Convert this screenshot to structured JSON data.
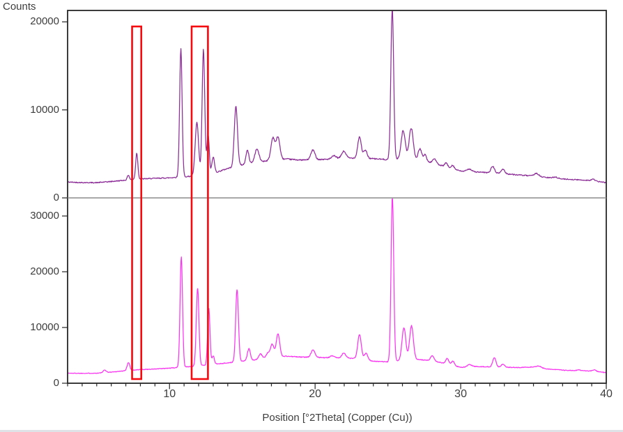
{
  "labels": {
    "counts": "Counts",
    "x_axis_title": "Position [°2Theta] (Copper (Cu))"
  },
  "colors": {
    "background": "#ffffff",
    "axis": "#262626",
    "panel_divider": "#8c8c8c",
    "tick_text": "#3d3d3d",
    "trace_top": "#8c2d97",
    "trace_bottom": "#fa34f0",
    "highlight_box": "#f50a0f"
  },
  "axes": {
    "x": {
      "min": 3,
      "max": 40,
      "minor_step": 1,
      "major_ticks": [
        10,
        20,
        30,
        40
      ],
      "tick_labels": [
        "10",
        "20",
        "30",
        "40"
      ]
    },
    "y_top": {
      "min": 0,
      "max": 21300,
      "ticks": [
        0,
        10000,
        20000
      ],
      "tick_labels": [
        "0",
        "10000",
        "20000"
      ]
    },
    "y_bottom": {
      "min": 0,
      "max": 33250,
      "ticks": [
        0,
        10000,
        20000,
        30000
      ],
      "tick_labels": [
        "0",
        "10000",
        "20000",
        "30000"
      ]
    }
  },
  "highlight_regions": [
    {
      "two_theta_start": 7.43,
      "two_theta_end": 8.06
    },
    {
      "two_theta_start": 11.52,
      "two_theta_end": 12.64
    }
  ],
  "chart_data": [
    {
      "type": "line",
      "name": "top-diffractogram",
      "panel": "top",
      "color_key": "trace_top",
      "x_unit": "°2Theta",
      "y_unit": "counts",
      "x_range": [
        3,
        40
      ],
      "ylim": [
        0,
        21300
      ],
      "clipped_peak_at_axis_top": 25.3,
      "noise_seed": 42,
      "baseline_points": [
        [
          3,
          1800
        ],
        [
          4,
          1740
        ],
        [
          5,
          1730
        ],
        [
          6,
          1860
        ],
        [
          7,
          2020
        ],
        [
          8,
          2150
        ],
        [
          9,
          2220
        ],
        [
          10,
          2280
        ],
        [
          11,
          2400
        ],
        [
          12,
          2520
        ],
        [
          13,
          2780
        ],
        [
          14,
          3350
        ],
        [
          15,
          3750
        ],
        [
          16,
          4050
        ],
        [
          17,
          4300
        ],
        [
          18,
          4420
        ],
        [
          19,
          4300
        ],
        [
          20,
          4350
        ],
        [
          21,
          4400
        ],
        [
          22,
          4500
        ],
        [
          23,
          4550
        ],
        [
          24,
          4450
        ],
        [
          25,
          4350
        ],
        [
          26,
          4400
        ],
        [
          27,
          4300
        ],
        [
          28,
          4000
        ],
        [
          29,
          3500
        ],
        [
          30,
          3050
        ],
        [
          31,
          2950
        ],
        [
          32,
          2850
        ],
        [
          33,
          2750
        ],
        [
          34,
          2600
        ],
        [
          35,
          2480
        ],
        [
          36,
          2300
        ],
        [
          37,
          2150
        ],
        [
          38,
          2060
        ],
        [
          39,
          1980
        ],
        [
          40,
          1720
        ]
      ],
      "peaks_format": "[two_theta_center, peak_height_above_baseline_counts, sigma_degrees]",
      "peaks": [
        [
          7.17,
          550,
          0.07
        ],
        [
          7.75,
          2980,
          0.075
        ],
        [
          10.78,
          14550,
          0.085
        ],
        [
          11.88,
          6050,
          0.115
        ],
        [
          12.33,
          14200,
          0.09
        ],
        [
          12.65,
          4550,
          0.08
        ],
        [
          13.0,
          1850,
          0.09
        ],
        [
          14.56,
          6800,
          0.11
        ],
        [
          15.35,
          1550,
          0.1
        ],
        [
          16.0,
          1500,
          0.14
        ],
        [
          17.1,
          2500,
          0.13
        ],
        [
          17.45,
          2550,
          0.13
        ],
        [
          19.85,
          1100,
          0.14
        ],
        [
          21.3,
          350,
          0.15
        ],
        [
          21.97,
          800,
          0.15
        ],
        [
          23.05,
          2400,
          0.12
        ],
        [
          23.45,
          900,
          0.12
        ],
        [
          25.3,
          17300,
          0.095
        ],
        [
          26.05,
          3250,
          0.14
        ],
        [
          26.6,
          3600,
          0.14
        ],
        [
          27.2,
          1350,
          0.12
        ],
        [
          27.55,
          800,
          0.1
        ],
        [
          28.2,
          550,
          0.12
        ],
        [
          29.0,
          480,
          0.1
        ],
        [
          29.45,
          420,
          0.1
        ],
        [
          30.6,
          300,
          0.15
        ],
        [
          32.2,
          750,
          0.12
        ],
        [
          32.9,
          500,
          0.12
        ],
        [
          35.2,
          350,
          0.15
        ],
        [
          36.5,
          150,
          0.15
        ],
        [
          39.1,
          180,
          0.1
        ]
      ]
    },
    {
      "type": "line",
      "name": "bottom-diffractogram",
      "panel": "bottom",
      "color_key": "trace_bottom",
      "x_unit": "°2Theta",
      "y_unit": "counts",
      "x_range": [
        3,
        40
      ],
      "ylim": [
        0,
        33250
      ],
      "clipped_peak_at_axis_top": 25.31,
      "noise_seed": 1337,
      "baseline_points": [
        [
          3,
          1800
        ],
        [
          4,
          1780
        ],
        [
          5,
          1800
        ],
        [
          6,
          2000
        ],
        [
          7,
          2250
        ],
        [
          8,
          2450
        ],
        [
          9,
          2550
        ],
        [
          10,
          2700
        ],
        [
          11,
          2900
        ],
        [
          12,
          3100
        ],
        [
          13,
          3400
        ],
        [
          14,
          3650
        ],
        [
          15,
          3950
        ],
        [
          16,
          4250
        ],
        [
          17,
          4550
        ],
        [
          18,
          4850
        ],
        [
          19,
          4700
        ],
        [
          20,
          4650
        ],
        [
          21,
          4550
        ],
        [
          22,
          4500
        ],
        [
          23,
          4400
        ],
        [
          24,
          3950
        ],
        [
          25,
          3820
        ],
        [
          26,
          4100
        ],
        [
          27,
          4250
        ],
        [
          28,
          4050
        ],
        [
          29,
          3500
        ],
        [
          30,
          2850
        ],
        [
          31,
          3000
        ],
        [
          32,
          2950
        ],
        [
          33,
          2850
        ],
        [
          34,
          2820
        ],
        [
          35,
          2900
        ],
        [
          36,
          2550
        ],
        [
          37,
          2350
        ],
        [
          38,
          2250
        ],
        [
          39,
          2200
        ],
        [
          40,
          1900
        ]
      ],
      "peaks_format": "[two_theta_center, peak_height_above_baseline_counts, sigma_degrees]",
      "peaks": [
        [
          5.55,
          450,
          0.1
        ],
        [
          7.18,
          1450,
          0.09
        ],
        [
          10.81,
          19900,
          0.085
        ],
        [
          11.93,
          14100,
          0.09
        ],
        [
          12.7,
          10200,
          0.08
        ],
        [
          13.0,
          1500,
          0.08
        ],
        [
          14.64,
          13000,
          0.095
        ],
        [
          15.45,
          2100,
          0.1
        ],
        [
          16.25,
          950,
          0.12
        ],
        [
          16.75,
          900,
          0.12
        ],
        [
          17.05,
          2400,
          0.12
        ],
        [
          17.45,
          4200,
          0.12
        ],
        [
          19.86,
          1350,
          0.13
        ],
        [
          21.2,
          400,
          0.15
        ],
        [
          21.97,
          900,
          0.14
        ],
        [
          23.05,
          4350,
          0.12
        ],
        [
          23.5,
          1200,
          0.12
        ],
        [
          25.31,
          29800,
          0.09
        ],
        [
          26.1,
          5900,
          0.13
        ],
        [
          26.62,
          6100,
          0.13
        ],
        [
          28.05,
          900,
          0.12
        ],
        [
          29.08,
          1000,
          0.1
        ],
        [
          29.47,
          800,
          0.1
        ],
        [
          30.6,
          400,
          0.15
        ],
        [
          32.31,
          1700,
          0.11
        ],
        [
          32.91,
          550,
          0.12
        ],
        [
          35.35,
          300,
          0.18
        ],
        [
          38.1,
          150,
          0.12
        ],
        [
          39.2,
          280,
          0.1
        ]
      ]
    }
  ]
}
